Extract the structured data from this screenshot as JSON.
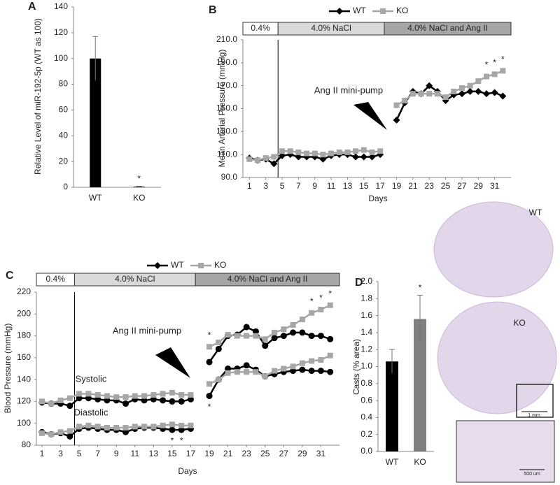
{
  "chart_data": [
    {
      "panel": "A",
      "type": "bar",
      "ylabel": "Relative Level of miR-192-5p (WT as 100)",
      "categories": [
        "WT",
        "KO"
      ],
      "values": [
        100,
        0.5
      ],
      "errors": [
        17,
        0.3
      ],
      "colors": [
        "#000000",
        "#000000"
      ],
      "significant": [
        false,
        true
      ],
      "significance_label": "*",
      "ylim": [
        0,
        140
      ],
      "yticks": [
        0,
        20,
        40,
        60,
        80,
        100,
        120,
        140
      ]
    },
    {
      "panel": "B",
      "type": "line",
      "ylabel": "Mean Arterial Pressure (mmHg)",
      "xlabel": "Days",
      "x": [
        1,
        2,
        3,
        4,
        5,
        6,
        7,
        8,
        9,
        10,
        11,
        12,
        13,
        14,
        15,
        16,
        17,
        18,
        19,
        20,
        21,
        22,
        23,
        24,
        25,
        26,
        27,
        28,
        29,
        30,
        31,
        32
      ],
      "series": [
        {
          "name": "WT",
          "color": "#000000",
          "marker": "diamond",
          "values": [
            107,
            105,
            106,
            102,
            109,
            110,
            108,
            108,
            108,
            106,
            109,
            110,
            110,
            108,
            108,
            108,
            110,
            null,
            140,
            155,
            165,
            163,
            170,
            165,
            157,
            162,
            163,
            165,
            165,
            163,
            164,
            161
          ]
        },
        {
          "name": "KO",
          "color": "#a6a6a6",
          "marker": "square",
          "values": [
            106,
            105,
            107,
            108,
            113,
            113,
            112,
            111,
            111,
            110,
            111,
            112,
            112,
            113,
            114,
            112,
            113,
            null,
            153,
            157,
            163,
            163,
            163,
            163,
            160,
            165,
            168,
            170,
            174,
            178,
            180,
            183
          ]
        }
      ],
      "significance": {
        "label": "*",
        "above": [
          30,
          31,
          32
        ],
        "below": []
      },
      "phases": [
        {
          "label": "0.4%",
          "start": 0.2,
          "end": 4.5,
          "color": "#ffffff"
        },
        {
          "label": "4.0% NaCl",
          "start": 4.5,
          "end": 17.5,
          "color": "#d9d9d9"
        },
        {
          "label": "4.0% NaCl and Ang II",
          "start": 17.5,
          "end": 33,
          "color": "#a6a6a6"
        }
      ],
      "annotations": [
        "Ang II mini-pump"
      ],
      "xlim": [
        0.2,
        33
      ],
      "xticks": [
        1,
        3,
        5,
        7,
        9,
        11,
        13,
        15,
        17,
        19,
        21,
        23,
        25,
        27,
        29,
        31
      ],
      "ylim": [
        90,
        210
      ],
      "yticks": [
        {
          "value": 90,
          "label": "90.0"
        },
        {
          "value": 110,
          "label": "110.0"
        },
        {
          "value": 130,
          "label": "130.0"
        },
        {
          "value": 150,
          "label": "150.0"
        },
        {
          "value": 170,
          "label": "170.0"
        },
        {
          "value": 190,
          "label": "190.0"
        },
        {
          "value": 210,
          "label": "210.0"
        }
      ]
    },
    {
      "panel": "C",
      "type": "line",
      "ylabel": "Blood Pressure (mmHg)",
      "xlabel": "Days",
      "x": [
        1,
        2,
        3,
        4,
        5,
        6,
        7,
        8,
        9,
        10,
        11,
        12,
        13,
        14,
        15,
        16,
        17,
        18,
        19,
        20,
        21,
        22,
        23,
        24,
        25,
        26,
        27,
        28,
        29,
        30,
        31,
        32
      ],
      "series": [
        {
          "name": "WT",
          "color": "#000000",
          "marker": "circle",
          "values": [
            119,
            118,
            118,
            116,
            123,
            123,
            122,
            121,
            121,
            118,
            122,
            121,
            122,
            121,
            120,
            120,
            122,
            null,
            156,
            168,
            180,
            181,
            188,
            184,
            171,
            178,
            180,
            183,
            183,
            180,
            180,
            177
          ]
        },
        {
          "name": "KO",
          "color": "#a6a6a6",
          "marker": "square",
          "values": [
            120,
            118,
            121,
            123,
            127,
            127,
            126,
            125,
            124,
            124,
            125,
            125,
            126,
            127,
            128,
            126,
            126,
            null,
            170,
            174,
            181,
            180,
            180,
            180,
            177,
            183,
            186,
            190,
            195,
            201,
            204,
            208
          ]
        },
        {
          "color": "#000000",
          "marker": "circle",
          "values": [
            92,
            90,
            91,
            88,
            95,
            96,
            95,
            94,
            94,
            92,
            95,
            96,
            96,
            95,
            94,
            94,
            95,
            null,
            125,
            140,
            150,
            150,
            153,
            149,
            143,
            145,
            147,
            148,
            149,
            148,
            148,
            147
          ]
        },
        {
          "color": "#a6a6a6",
          "marker": "square",
          "values": [
            91,
            90,
            92,
            93,
            97,
            98,
            97,
            96,
            96,
            96,
            97,
            97,
            97,
            98,
            99,
            98,
            98,
            null,
            136,
            140,
            146,
            147,
            147,
            147,
            143,
            148,
            150,
            152,
            155,
            157,
            158,
            162
          ]
        }
      ],
      "significance": {
        "label": "*",
        "above": [
          19,
          30,
          31,
          32
        ],
        "below": [
          15,
          16,
          19
        ]
      },
      "phases": [
        {
          "label": "0.4%",
          "start": 0.4,
          "end": 4.5,
          "color": "#ffffff"
        },
        {
          "label": "4.0% NaCl",
          "start": 4.5,
          "end": 17.5,
          "color": "#d9d9d9"
        },
        {
          "label": "4.0% NaCl and Ang II",
          "start": 17.5,
          "end": 33,
          "color": "#a6a6a6"
        }
      ],
      "annotations": [
        "Ang II mini-pump",
        "Systolic",
        "Diastolic"
      ],
      "xlim": [
        0.4,
        33
      ],
      "xticks": [
        1,
        3,
        5,
        7,
        9,
        11,
        13,
        15,
        17,
        19,
        21,
        23,
        25,
        27,
        29,
        31
      ],
      "ylim": [
        80,
        220
      ],
      "yticks": [
        80,
        100,
        120,
        140,
        160,
        180,
        200,
        220
      ]
    },
    {
      "panel": "D",
      "type": "bar",
      "ylabel": "Casts (% area)",
      "categories": [
        "WT",
        "KO"
      ],
      "values": [
        1.06,
        1.56
      ],
      "errors": [
        0.14,
        0.28
      ],
      "colors": [
        "#000000",
        "#808080"
      ],
      "significant": [
        false,
        true
      ],
      "significance_label": "*",
      "ylim": [
        0,
        2
      ],
      "yticks": [
        {
          "value": 0,
          "label": "0.0"
        },
        {
          "value": 0.2,
          "label": "0.2"
        },
        {
          "value": 0.4,
          "label": "0.4"
        },
        {
          "value": 0.6,
          "label": "0.6"
        },
        {
          "value": 0.8,
          "label": "0.8"
        },
        {
          "value": 1,
          "label": "1.0"
        },
        {
          "value": 1.2,
          "label": "1.2"
        },
        {
          "value": 1.4,
          "label": "1.4"
        },
        {
          "value": 1.6,
          "label": "1.6"
        },
        {
          "value": 1.8,
          "label": "1.8"
        },
        {
          "value": 2,
          "label": "2.0"
        }
      ]
    }
  ],
  "histology": {
    "labels": [
      "WT",
      "KO"
    ],
    "scale_bars": [
      "1 mm",
      "500 um"
    ]
  }
}
